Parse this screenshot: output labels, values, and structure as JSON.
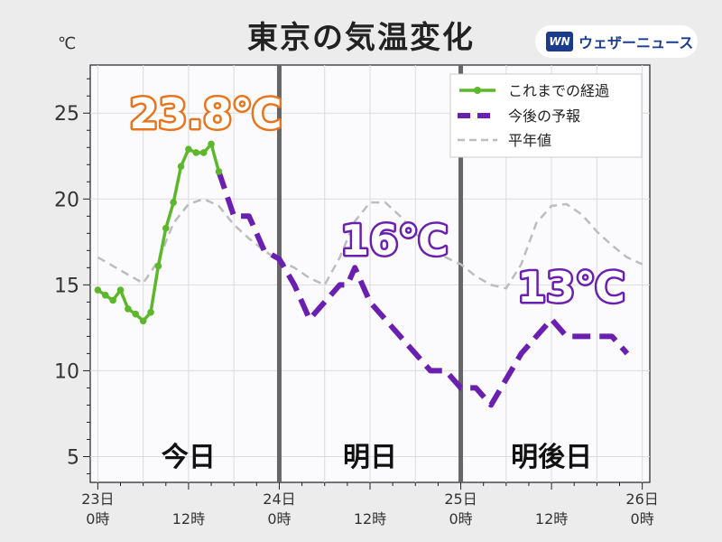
{
  "title": "東京の気温変化",
  "logo": {
    "mark": "WN",
    "text": "ウェザーニュース"
  },
  "chart_data": {
    "type": "line",
    "unit": "℃",
    "ylim": [
      3.5,
      27.8
    ],
    "yticks": [
      5,
      10,
      15,
      20,
      25
    ],
    "xlim_hours": [
      -1,
      73
    ],
    "xticks": [
      {
        "hour": 0,
        "top": "23日",
        "bottom": "0時"
      },
      {
        "hour": 12,
        "top": "",
        "bottom": "12時"
      },
      {
        "hour": 24,
        "top": "24日",
        "bottom": "0時"
      },
      {
        "hour": 36,
        "top": "",
        "bottom": "12時"
      },
      {
        "hour": 48,
        "top": "25日",
        "bottom": "0時"
      },
      {
        "hour": 60,
        "top": "",
        "bottom": "12時"
      },
      {
        "hour": 72,
        "top": "26日",
        "bottom": "0時"
      }
    ],
    "day_dividers": [
      24,
      48
    ],
    "day_labels": [
      {
        "text": "今日",
        "hour": 12
      },
      {
        "text": "明日",
        "hour": 36
      },
      {
        "text": "明後日",
        "hour": 60
      }
    ],
    "legend": {
      "position": "top-right"
    },
    "series": [
      {
        "name": "これまでの経過",
        "color": "#5cb82a",
        "style": "solid-markers",
        "points": [
          [
            0,
            14.7
          ],
          [
            1,
            14.4
          ],
          [
            2,
            14.1
          ],
          [
            3,
            14.7
          ],
          [
            4,
            13.6
          ],
          [
            5,
            13.3
          ],
          [
            6,
            12.9
          ],
          [
            7,
            13.4
          ],
          [
            8,
            16.1
          ],
          [
            9,
            18.3
          ],
          [
            10,
            19.8
          ],
          [
            11,
            21.9
          ],
          [
            12,
            22.9
          ],
          [
            13,
            22.7
          ],
          [
            14,
            22.7
          ],
          [
            15,
            23.2
          ],
          [
            16,
            21.6
          ]
        ]
      },
      {
        "name": "今後の予報",
        "color": "#6a1fb0",
        "style": "dashed",
        "points": [
          [
            16,
            21.6
          ],
          [
            18,
            19
          ],
          [
            20,
            19
          ],
          [
            22,
            17
          ],
          [
            24,
            16.5
          ],
          [
            26,
            15
          ],
          [
            28,
            13
          ],
          [
            30,
            14
          ],
          [
            32,
            15
          ],
          [
            33,
            15
          ],
          [
            34,
            16
          ],
          [
            36,
            14
          ],
          [
            38,
            13
          ],
          [
            40,
            12
          ],
          [
            42,
            11
          ],
          [
            44,
            10
          ],
          [
            46,
            10
          ],
          [
            48,
            9
          ],
          [
            50,
            9
          ],
          [
            52,
            8
          ],
          [
            54,
            9.5
          ],
          [
            56,
            11
          ],
          [
            58,
            12
          ],
          [
            60,
            13
          ],
          [
            62,
            12
          ],
          [
            64,
            12
          ],
          [
            66,
            12
          ],
          [
            68,
            12
          ],
          [
            70,
            11
          ]
        ]
      },
      {
        "name": "平年値",
        "color": "#bdbdbd",
        "style": "dashed-thin",
        "points": [
          [
            0,
            16.6
          ],
          [
            2,
            16.1
          ],
          [
            4,
            15.6
          ],
          [
            6,
            15.1
          ],
          [
            8,
            16.4
          ],
          [
            10,
            18.6
          ],
          [
            12,
            19.7
          ],
          [
            14,
            20.0
          ],
          [
            16,
            19.6
          ],
          [
            18,
            18.5
          ],
          [
            20,
            17.7
          ],
          [
            22,
            17.0
          ],
          [
            24,
            16.4
          ],
          [
            26,
            16.0
          ],
          [
            28,
            15.4
          ],
          [
            30,
            15.0
          ],
          [
            32,
            16.6
          ],
          [
            34,
            18.7
          ],
          [
            36,
            19.8
          ],
          [
            38,
            19.8
          ],
          [
            40,
            19.0
          ],
          [
            42,
            18.0
          ],
          [
            44,
            17.2
          ],
          [
            46,
            16.6
          ],
          [
            48,
            16.2
          ],
          [
            50,
            15.5
          ],
          [
            52,
            15.0
          ],
          [
            54,
            14.8
          ],
          [
            56,
            16.2
          ],
          [
            58,
            18.6
          ],
          [
            60,
            19.6
          ],
          [
            62,
            19.7
          ],
          [
            64,
            19.1
          ],
          [
            66,
            18.1
          ],
          [
            68,
            17.3
          ],
          [
            70,
            16.6
          ],
          [
            72,
            16.2
          ]
        ]
      }
    ],
    "annotations": [
      {
        "text": "23.8℃",
        "hour": 15,
        "value": 23.8,
        "color": "#e8741e"
      },
      {
        "text": "16℃",
        "hour": 36,
        "value": 16,
        "color": "#6a1fb0"
      },
      {
        "text": "13℃",
        "hour": 60,
        "value": 13,
        "color": "#6a1fb0"
      }
    ]
  }
}
